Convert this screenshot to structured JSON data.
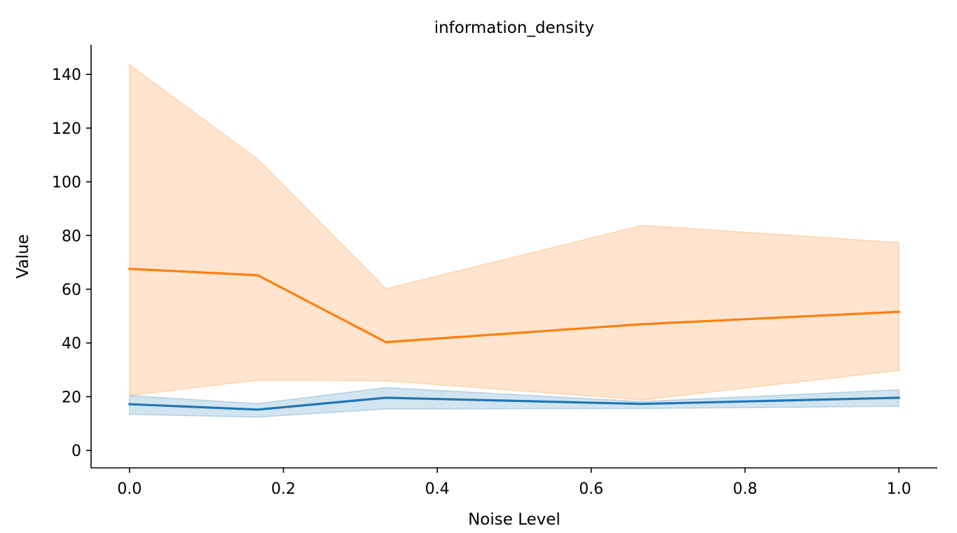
{
  "chart_data": {
    "type": "line",
    "title": "information_density",
    "xlabel": "Noise Level",
    "ylabel": "Value",
    "xlim": [
      -0.05,
      1.05
    ],
    "ylim": [
      -6.5,
      151
    ],
    "xticks": [
      0.0,
      0.2,
      0.4,
      0.6,
      0.8,
      1.0
    ],
    "xtick_labels": [
      "0.0",
      "0.2",
      "0.4",
      "0.6",
      "0.8",
      "1.0"
    ],
    "yticks": [
      0,
      20,
      40,
      60,
      80,
      100,
      120,
      140
    ],
    "ytick_labels": [
      "0",
      "20",
      "40",
      "60",
      "80",
      "100",
      "120",
      "140"
    ],
    "grid": false,
    "legend": false,
    "x": [
      0.0,
      0.1667,
      0.3333,
      0.6667,
      1.0
    ],
    "series": [
      {
        "color": "#1f77b4",
        "values": [
          17.2,
          15.2,
          19.6,
          17.3,
          19.6
        ],
        "lower": [
          13.4,
          12.4,
          15.4,
          15.6,
          16.4
        ],
        "upper": [
          20.4,
          17.4,
          23.4,
          18.2,
          22.6
        ]
      },
      {
        "color": "#ff7f0e",
        "values": [
          67.6,
          65.2,
          40.3,
          47.0,
          51.6
        ],
        "lower": [
          20.4,
          26.2,
          25.9,
          18.8,
          29.8
        ],
        "upper": [
          143.6,
          108.4,
          60.2,
          83.8,
          77.4
        ]
      }
    ]
  }
}
